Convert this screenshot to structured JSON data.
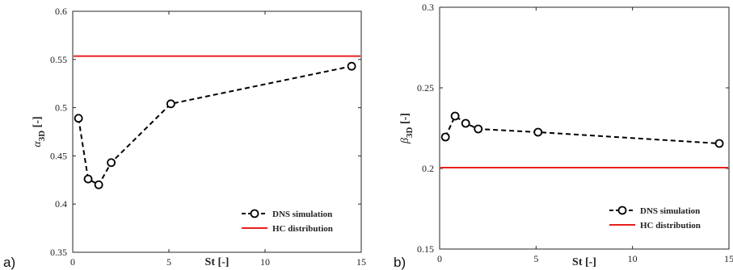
{
  "chart_data": [
    {
      "type": "line",
      "panel_label": "a)",
      "xlabel": "St [-]",
      "ylabel_symbol": "α",
      "ylabel_sub": "3D",
      "ylabel_unit": "[-]",
      "xlim": [
        0,
        15
      ],
      "ylim": [
        0.35,
        0.6
      ],
      "xticks": [
        0,
        5,
        10,
        15
      ],
      "yticks": [
        0.35,
        0.4,
        0.45,
        0.5,
        0.55,
        0.6
      ],
      "xtick_labels": [
        "0",
        "5",
        "10",
        "15"
      ],
      "ytick_labels": [
        "0.35",
        "0.4",
        "0.45",
        "0.5",
        "0.55",
        "0.6"
      ],
      "legend_position": "bottom-right",
      "series": [
        {
          "name": "DNS simulation",
          "style": "dashed-circles",
          "color": "#000000",
          "x": [
            0.3,
            0.8,
            1.35,
            2.0,
            5.1,
            14.5
          ],
          "y": [
            0.489,
            0.426,
            0.42,
            0.443,
            0.504,
            0.543
          ]
        }
      ],
      "reference_line": {
        "name": "HC distribution",
        "y": 0.5535,
        "color": "#e8201f"
      }
    },
    {
      "type": "line",
      "panel_label": "b)",
      "xlabel": "St [-]",
      "ylabel_symbol": "β",
      "ylabel_sub": "3D",
      "ylabel_unit": "[-]",
      "xlim": [
        0,
        15
      ],
      "ylim": [
        0.15,
        0.3
      ],
      "xticks": [
        0,
        5,
        10,
        15
      ],
      "yticks": [
        0.15,
        0.2,
        0.25,
        0.3
      ],
      "xtick_labels": [
        "0",
        "5",
        "10",
        "15"
      ],
      "ytick_labels": [
        "0.15",
        "0.2",
        "0.25",
        "0.3"
      ],
      "legend_position": "bottom-right",
      "series": [
        {
          "name": "DNS simulation",
          "style": "dashed-circles",
          "color": "#000000",
          "x": [
            0.3,
            0.8,
            1.35,
            2.0,
            5.1,
            14.5
          ],
          "y": [
            0.2195,
            0.2325,
            0.228,
            0.2245,
            0.2225,
            0.2155
          ]
        }
      ],
      "reference_line": {
        "name": "HC distribution",
        "y": 0.2005,
        "color": "#e8201f"
      }
    }
  ]
}
